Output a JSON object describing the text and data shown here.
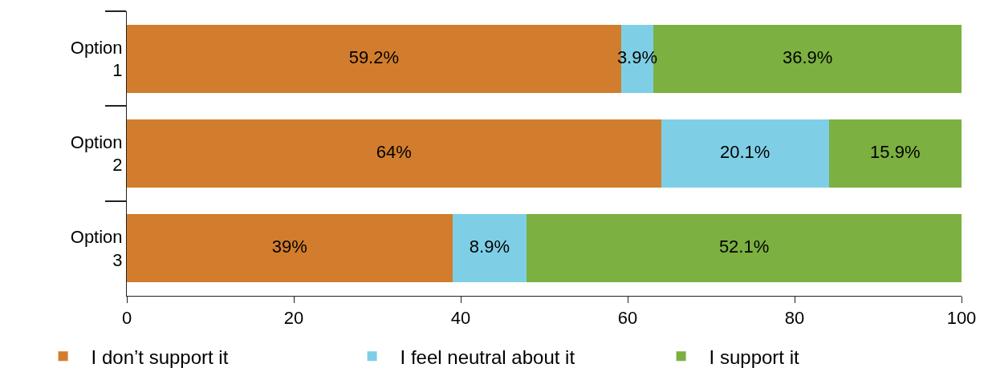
{
  "chart_data": {
    "type": "bar",
    "orientation": "horizontal",
    "stacked": true,
    "categories": [
      "Option 1",
      "Option 2",
      "Option 3"
    ],
    "series": [
      {
        "name": "I don’t support it",
        "color": "#d27d2d",
        "values": [
          59.2,
          64,
          39
        ],
        "value_labels": [
          "59.2%",
          "64%",
          "39%"
        ]
      },
      {
        "name": "I feel neutral about it",
        "color": "#7ecfe6",
        "values": [
          3.9,
          20.1,
          8.9
        ],
        "value_labels": [
          "3.9%",
          "20.1%",
          "8.9%"
        ]
      },
      {
        "name": "I support it",
        "color": "#7cb041",
        "values": [
          36.9,
          15.9,
          52.1
        ],
        "value_labels": [
          "36.9%",
          "15.9%",
          "52.1%"
        ]
      }
    ],
    "xlim": [
      0,
      100
    ],
    "xticks": [
      0,
      20,
      40,
      60,
      80,
      100
    ],
    "grid": false,
    "legend": "bottom"
  }
}
